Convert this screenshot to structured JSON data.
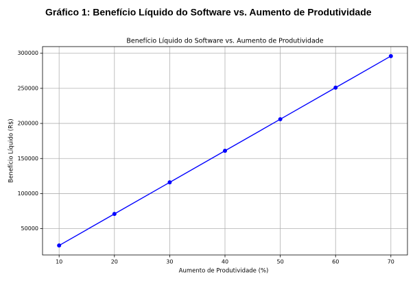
{
  "heading": "Gráfico 1: Benefício Líquido do Software vs. Aumento de Produtividade",
  "chart_data": {
    "type": "line",
    "title": "Benefício Líquido do Software vs. Aumento de Produtividade",
    "x_label": "Aumento de Produtividade (%)",
    "y_label": "Benefício Líquido (R$)",
    "x": [
      10,
      20,
      30,
      40,
      50,
      60,
      70
    ],
    "values": [
      26000,
      71000,
      116000,
      161000,
      206000,
      251000,
      296000
    ],
    "color": "#0000ff",
    "xlim": [
      7,
      73
    ],
    "xticks": [
      10,
      20,
      30,
      40,
      50,
      60,
      70
    ],
    "ylim": [
      12500,
      309500
    ],
    "yticks": [
      50000,
      100000,
      150000,
      200000,
      250000,
      300000
    ],
    "grid": true
  }
}
